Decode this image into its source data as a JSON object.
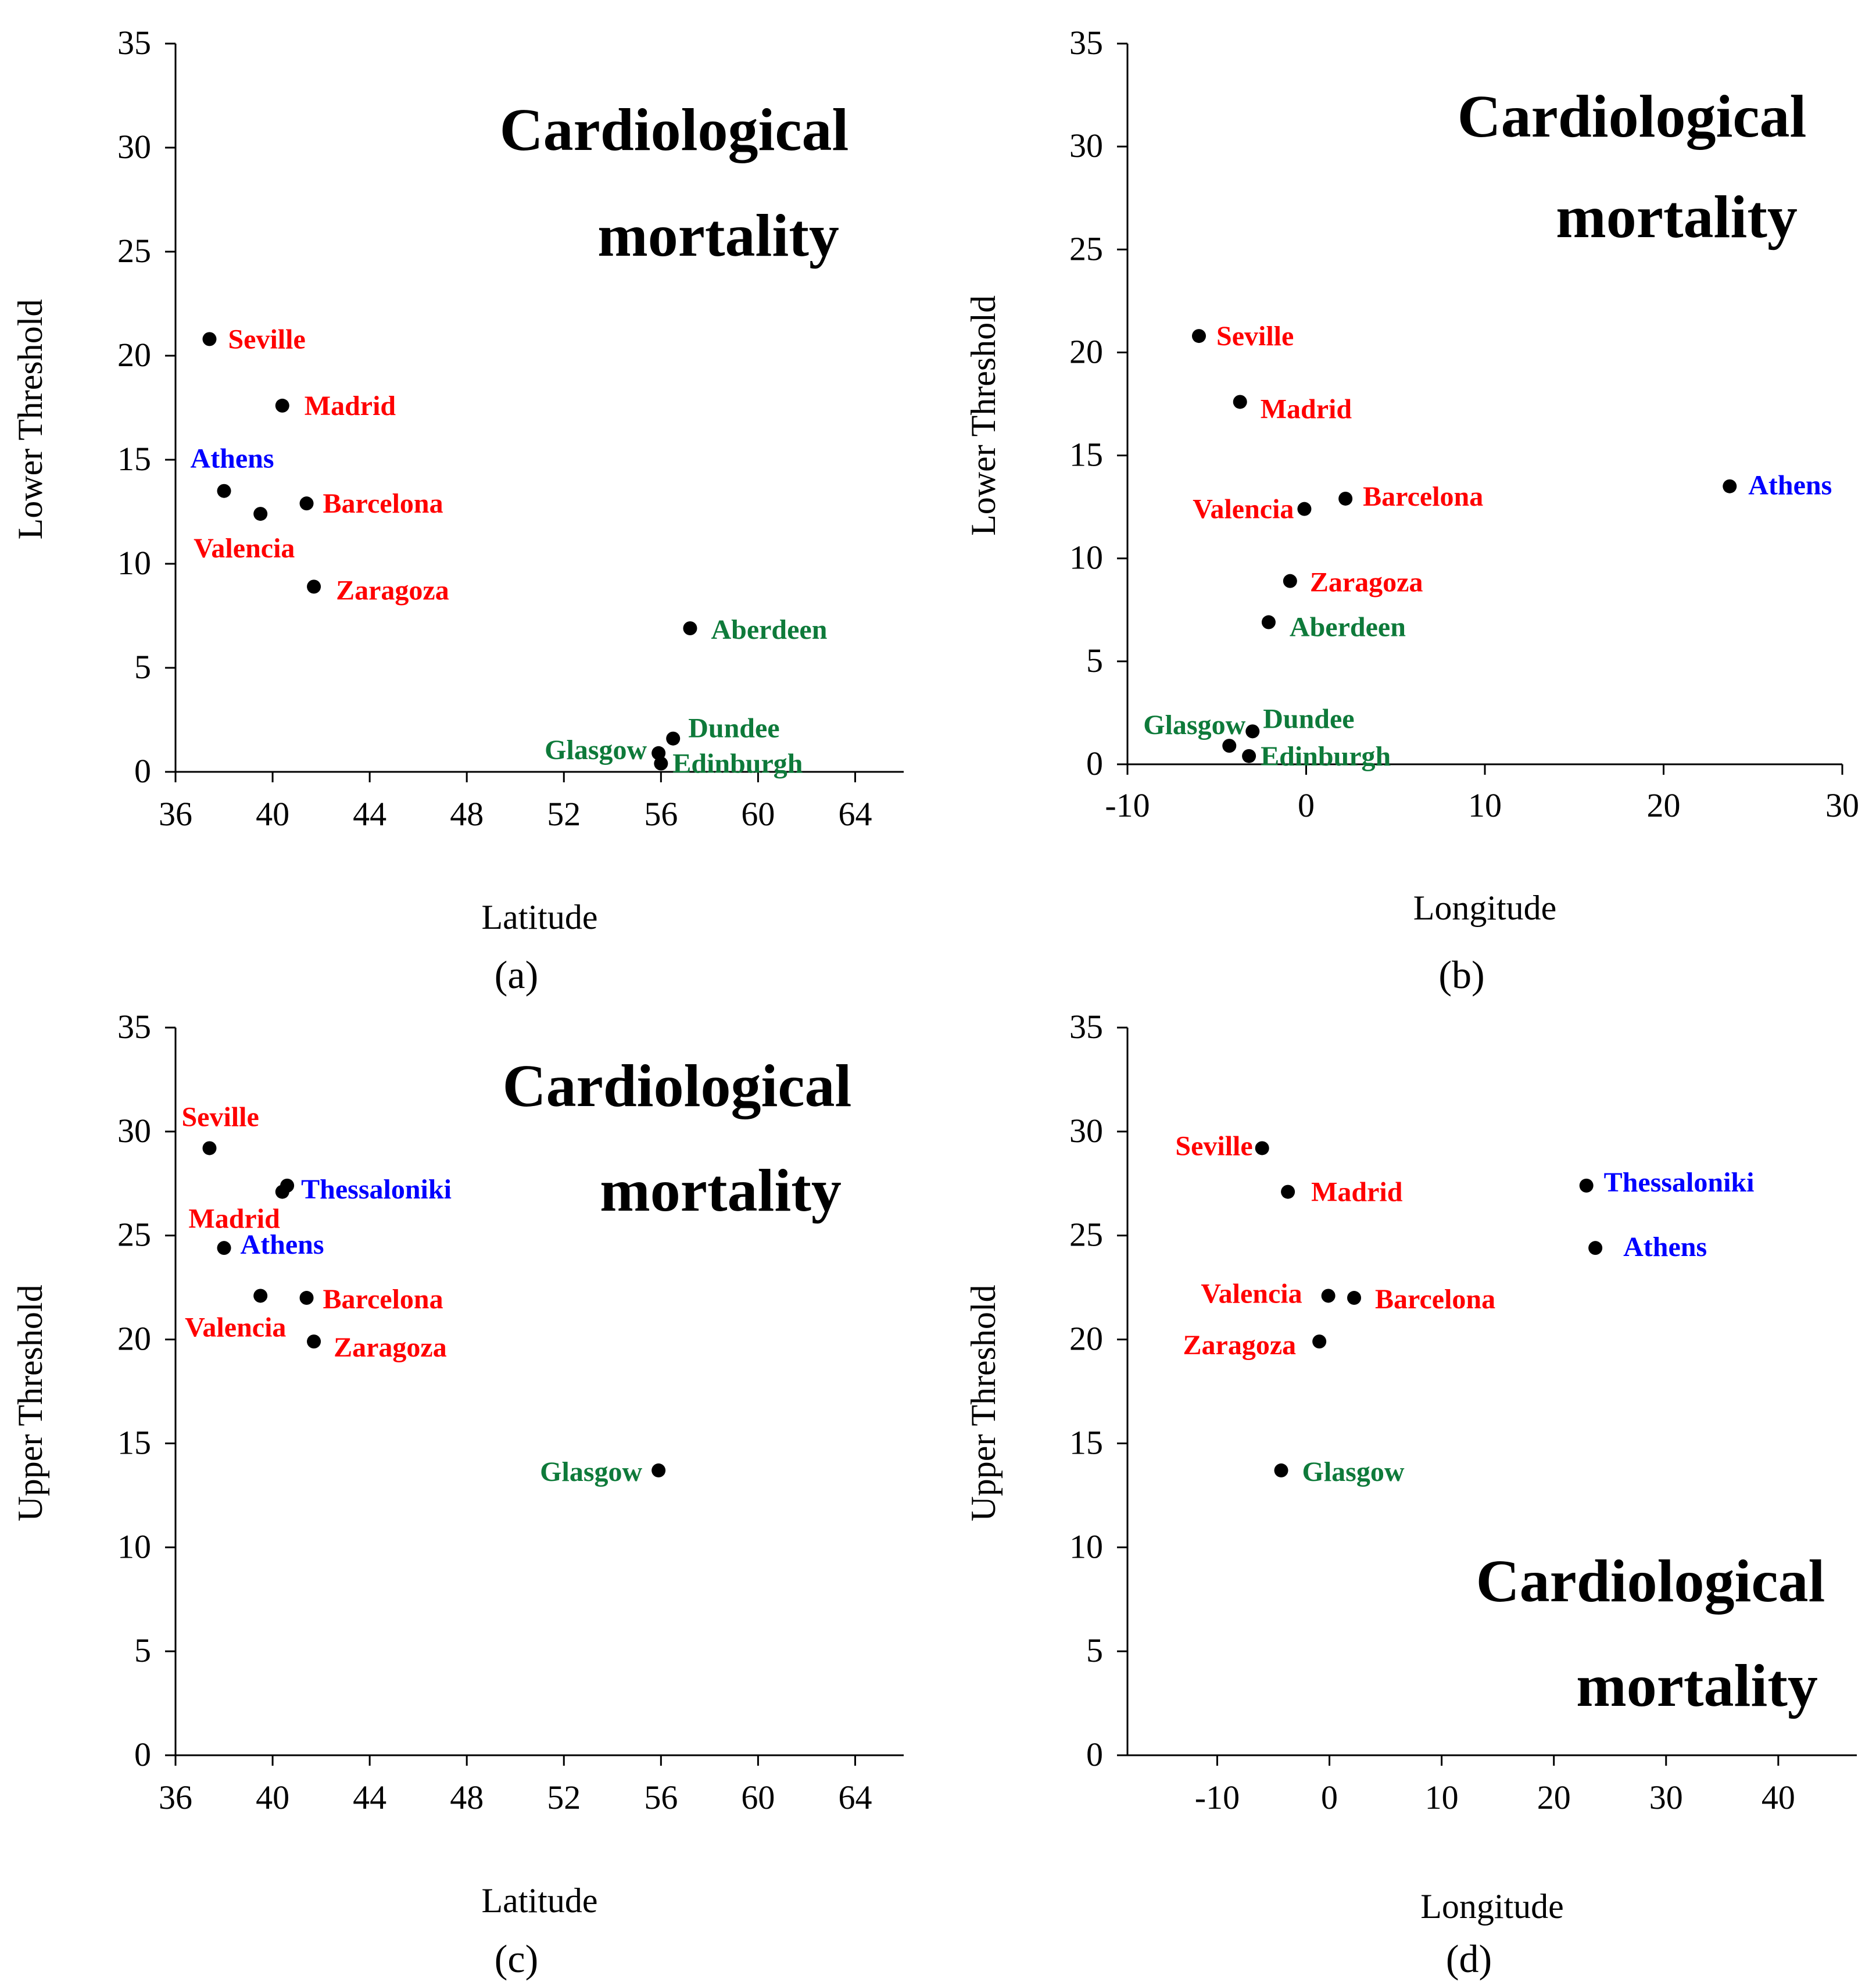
{
  "colors": {
    "spain": "#ff0000",
    "greece": "#0000ff",
    "scotland": "#0e7a3a",
    "point": "#000000"
  },
  "chart_data": [
    {
      "id": "a",
      "type": "scatter",
      "panel_label": "(a)",
      "title_lines": [
        "Cardiological",
        "mortality"
      ],
      "xlabel": "Latitude",
      "ylabel": "Lower Threshold",
      "xlim": [
        36,
        66
      ],
      "ylim": [
        0,
        35
      ],
      "xticks": [
        36,
        40,
        44,
        48,
        52,
        56,
        60,
        64
      ],
      "yticks": [
        0,
        5,
        10,
        15,
        20,
        25,
        30,
        35
      ],
      "points": [
        {
          "name": "Seville",
          "x": 37.4,
          "y": 20.8,
          "group": "spain"
        },
        {
          "name": "Madrid",
          "x": 40.4,
          "y": 17.6,
          "group": "spain"
        },
        {
          "name": "Athens",
          "x": 38.0,
          "y": 13.5,
          "group": "greece"
        },
        {
          "name": "Valencia",
          "x": 39.5,
          "y": 12.4,
          "group": "spain"
        },
        {
          "name": "Barcelona",
          "x": 41.4,
          "y": 12.9,
          "group": "spain"
        },
        {
          "name": "Zaragoza",
          "x": 41.7,
          "y": 8.9,
          "group": "spain"
        },
        {
          "name": "Aberdeen",
          "x": 57.2,
          "y": 6.9,
          "group": "scotland"
        },
        {
          "name": "Dundee",
          "x": 56.5,
          "y": 1.6,
          "group": "scotland"
        },
        {
          "name": "Glasgow",
          "x": 55.9,
          "y": 0.9,
          "group": "scotland"
        },
        {
          "name": "Edinburgh",
          "x": 56.0,
          "y": 0.4,
          "group": "scotland"
        }
      ]
    },
    {
      "id": "b",
      "type": "scatter",
      "panel_label": "(b)",
      "title_lines": [
        "Cardiological",
        "mortality"
      ],
      "xlabel": "Longitude",
      "ylabel": "Lower Threshold",
      "xlim": [
        -10,
        30
      ],
      "ylim": [
        0,
        35
      ],
      "xticks": [
        -10,
        0,
        10,
        20,
        30
      ],
      "yticks": [
        0,
        5,
        10,
        15,
        20,
        25,
        30,
        35
      ],
      "points": [
        {
          "name": "Seville",
          "x": -6.0,
          "y": 20.8,
          "group": "spain"
        },
        {
          "name": "Madrid",
          "x": -3.7,
          "y": 17.6,
          "group": "spain"
        },
        {
          "name": "Valencia",
          "x": -0.1,
          "y": 12.4,
          "group": "spain"
        },
        {
          "name": "Barcelona",
          "x": 2.2,
          "y": 12.9,
          "group": "spain"
        },
        {
          "name": "Athens",
          "x": 23.7,
          "y": 13.5,
          "group": "greece"
        },
        {
          "name": "Zaragoza",
          "x": -0.9,
          "y": 8.9,
          "group": "spain"
        },
        {
          "name": "Aberdeen",
          "x": -2.1,
          "y": 6.9,
          "group": "scotland"
        },
        {
          "name": "Glasgow",
          "x": -4.3,
          "y": 0.9,
          "group": "scotland"
        },
        {
          "name": "Dundee",
          "x": -3.0,
          "y": 1.6,
          "group": "scotland"
        },
        {
          "name": "Edinburgh",
          "x": -3.2,
          "y": 0.4,
          "group": "scotland"
        }
      ]
    },
    {
      "id": "c",
      "type": "scatter",
      "panel_label": "(c)",
      "title_lines": [
        "Cardiological",
        "mortality"
      ],
      "xlabel": "Latitude",
      "ylabel": "Upper Threshold",
      "xlim": [
        36,
        66
      ],
      "ylim": [
        0,
        35
      ],
      "xticks": [
        36,
        40,
        44,
        48,
        52,
        56,
        60,
        64
      ],
      "yticks": [
        0,
        5,
        10,
        15,
        20,
        25,
        30,
        35
      ],
      "points": [
        {
          "name": "Seville",
          "x": 37.4,
          "y": 29.2,
          "group": "spain"
        },
        {
          "name": "Madrid",
          "x": 40.4,
          "y": 27.1,
          "group": "spain"
        },
        {
          "name": "Thessaloniki",
          "x": 40.6,
          "y": 27.4,
          "group": "greece"
        },
        {
          "name": "Athens",
          "x": 38.0,
          "y": 24.4,
          "group": "greece"
        },
        {
          "name": "Valencia",
          "x": 39.5,
          "y": 22.1,
          "group": "spain"
        },
        {
          "name": "Barcelona",
          "x": 41.4,
          "y": 22.0,
          "group": "spain"
        },
        {
          "name": "Zaragoza",
          "x": 41.7,
          "y": 19.9,
          "group": "spain"
        },
        {
          "name": "Glasgow",
          "x": 55.9,
          "y": 13.7,
          "group": "scotland"
        }
      ]
    },
    {
      "id": "d",
      "type": "scatter",
      "panel_label": "(d)",
      "title_lines": [
        "Cardiological",
        "mortality"
      ],
      "xlabel": "Longitude",
      "ylabel": "Upper Threshold",
      "xlim": [
        -18,
        47
      ],
      "ylim": [
        0,
        35
      ],
      "xticks": [
        -10,
        0,
        10,
        20,
        30,
        40
      ],
      "yticks": [
        0,
        5,
        10,
        15,
        20,
        25,
        30,
        35
      ],
      "points": [
        {
          "name": "Seville",
          "x": -6.0,
          "y": 29.2,
          "group": "spain"
        },
        {
          "name": "Madrid",
          "x": -3.7,
          "y": 27.1,
          "group": "spain"
        },
        {
          "name": "Thessaloniki",
          "x": 22.9,
          "y": 27.4,
          "group": "greece"
        },
        {
          "name": "Athens",
          "x": 23.7,
          "y": 24.4,
          "group": "greece"
        },
        {
          "name": "Valencia",
          "x": -0.1,
          "y": 22.1,
          "group": "spain"
        },
        {
          "name": "Barcelona",
          "x": 2.2,
          "y": 22.0,
          "group": "spain"
        },
        {
          "name": "Zaragoza",
          "x": -0.9,
          "y": 19.9,
          "group": "spain"
        },
        {
          "name": "Glasgow",
          "x": -4.3,
          "y": 13.7,
          "group": "scotland"
        }
      ]
    }
  ]
}
